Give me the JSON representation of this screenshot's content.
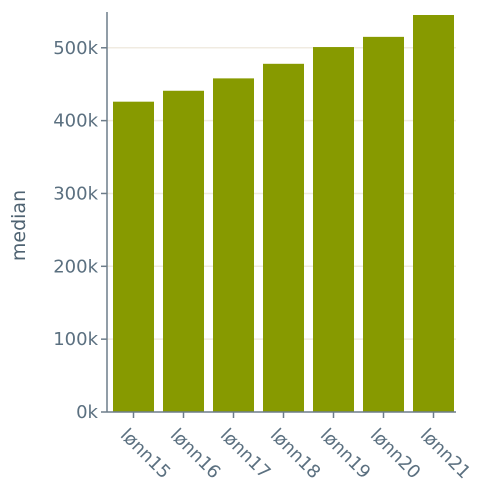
{
  "chart_data": {
    "type": "bar",
    "categories": [
      "lønn15",
      "lønn16",
      "lønn17",
      "lønn18",
      "lønn19",
      "lønn20",
      "lønn21"
    ],
    "values": [
      426000,
      441000,
      458000,
      478000,
      501000,
      515000,
      545000
    ],
    "title": "",
    "xlabel": "",
    "ylabel": "median",
    "ylim": [
      0,
      545000
    ],
    "yticks": [
      0,
      100000,
      200000,
      300000,
      400000,
      500000
    ],
    "ytick_labels": [
      "0k",
      "100k",
      "200k",
      "300k",
      "400k",
      "500k"
    ],
    "grid": "horizontal",
    "legend": "none",
    "colors": {
      "bar": "#879a00",
      "grid": "#f0ebe1",
      "axis": "#6d7d8a",
      "text": "#5b7080"
    }
  }
}
